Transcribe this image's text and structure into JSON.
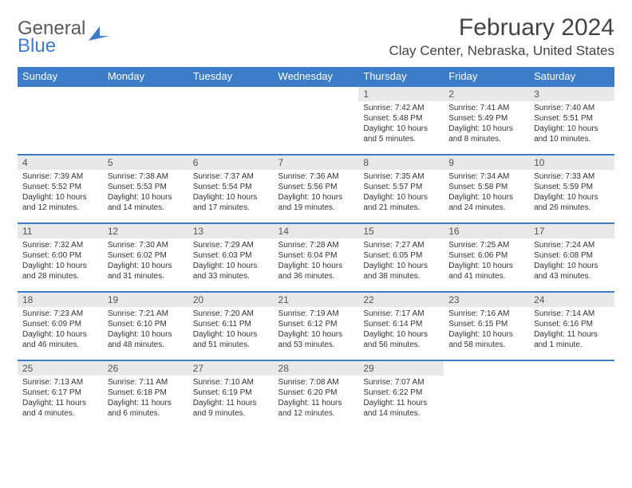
{
  "logo": {
    "line1": "General",
    "line2": "Blue"
  },
  "title": "February 2024",
  "location": "Clay Center, Nebraska, United States",
  "header_bg": "#3d7cc9",
  "header_fg": "#ffffff",
  "daynum_bg": "#e8e8e8",
  "row_border": "#3d7cc9",
  "weekdays": [
    "Sunday",
    "Monday",
    "Tuesday",
    "Wednesday",
    "Thursday",
    "Friday",
    "Saturday"
  ],
  "weeks": [
    [
      null,
      null,
      null,
      null,
      {
        "n": "1",
        "sunrise": "Sunrise: 7:42 AM",
        "sunset": "Sunset: 5:48 PM",
        "daylight": "Daylight: 10 hours and 5 minutes."
      },
      {
        "n": "2",
        "sunrise": "Sunrise: 7:41 AM",
        "sunset": "Sunset: 5:49 PM",
        "daylight": "Daylight: 10 hours and 8 minutes."
      },
      {
        "n": "3",
        "sunrise": "Sunrise: 7:40 AM",
        "sunset": "Sunset: 5:51 PM",
        "daylight": "Daylight: 10 hours and 10 minutes."
      }
    ],
    [
      {
        "n": "4",
        "sunrise": "Sunrise: 7:39 AM",
        "sunset": "Sunset: 5:52 PM",
        "daylight": "Daylight: 10 hours and 12 minutes."
      },
      {
        "n": "5",
        "sunrise": "Sunrise: 7:38 AM",
        "sunset": "Sunset: 5:53 PM",
        "daylight": "Daylight: 10 hours and 14 minutes."
      },
      {
        "n": "6",
        "sunrise": "Sunrise: 7:37 AM",
        "sunset": "Sunset: 5:54 PM",
        "daylight": "Daylight: 10 hours and 17 minutes."
      },
      {
        "n": "7",
        "sunrise": "Sunrise: 7:36 AM",
        "sunset": "Sunset: 5:56 PM",
        "daylight": "Daylight: 10 hours and 19 minutes."
      },
      {
        "n": "8",
        "sunrise": "Sunrise: 7:35 AM",
        "sunset": "Sunset: 5:57 PM",
        "daylight": "Daylight: 10 hours and 21 minutes."
      },
      {
        "n": "9",
        "sunrise": "Sunrise: 7:34 AM",
        "sunset": "Sunset: 5:58 PM",
        "daylight": "Daylight: 10 hours and 24 minutes."
      },
      {
        "n": "10",
        "sunrise": "Sunrise: 7:33 AM",
        "sunset": "Sunset: 5:59 PM",
        "daylight": "Daylight: 10 hours and 26 minutes."
      }
    ],
    [
      {
        "n": "11",
        "sunrise": "Sunrise: 7:32 AM",
        "sunset": "Sunset: 6:00 PM",
        "daylight": "Daylight: 10 hours and 28 minutes."
      },
      {
        "n": "12",
        "sunrise": "Sunrise: 7:30 AM",
        "sunset": "Sunset: 6:02 PM",
        "daylight": "Daylight: 10 hours and 31 minutes."
      },
      {
        "n": "13",
        "sunrise": "Sunrise: 7:29 AM",
        "sunset": "Sunset: 6:03 PM",
        "daylight": "Daylight: 10 hours and 33 minutes."
      },
      {
        "n": "14",
        "sunrise": "Sunrise: 7:28 AM",
        "sunset": "Sunset: 6:04 PM",
        "daylight": "Daylight: 10 hours and 36 minutes."
      },
      {
        "n": "15",
        "sunrise": "Sunrise: 7:27 AM",
        "sunset": "Sunset: 6:05 PM",
        "daylight": "Daylight: 10 hours and 38 minutes."
      },
      {
        "n": "16",
        "sunrise": "Sunrise: 7:25 AM",
        "sunset": "Sunset: 6:06 PM",
        "daylight": "Daylight: 10 hours and 41 minutes."
      },
      {
        "n": "17",
        "sunrise": "Sunrise: 7:24 AM",
        "sunset": "Sunset: 6:08 PM",
        "daylight": "Daylight: 10 hours and 43 minutes."
      }
    ],
    [
      {
        "n": "18",
        "sunrise": "Sunrise: 7:23 AM",
        "sunset": "Sunset: 6:09 PM",
        "daylight": "Daylight: 10 hours and 46 minutes."
      },
      {
        "n": "19",
        "sunrise": "Sunrise: 7:21 AM",
        "sunset": "Sunset: 6:10 PM",
        "daylight": "Daylight: 10 hours and 48 minutes."
      },
      {
        "n": "20",
        "sunrise": "Sunrise: 7:20 AM",
        "sunset": "Sunset: 6:11 PM",
        "daylight": "Daylight: 10 hours and 51 minutes."
      },
      {
        "n": "21",
        "sunrise": "Sunrise: 7:19 AM",
        "sunset": "Sunset: 6:12 PM",
        "daylight": "Daylight: 10 hours and 53 minutes."
      },
      {
        "n": "22",
        "sunrise": "Sunrise: 7:17 AM",
        "sunset": "Sunset: 6:14 PM",
        "daylight": "Daylight: 10 hours and 56 minutes."
      },
      {
        "n": "23",
        "sunrise": "Sunrise: 7:16 AM",
        "sunset": "Sunset: 6:15 PM",
        "daylight": "Daylight: 10 hours and 58 minutes."
      },
      {
        "n": "24",
        "sunrise": "Sunrise: 7:14 AM",
        "sunset": "Sunset: 6:16 PM",
        "daylight": "Daylight: 11 hours and 1 minute."
      }
    ],
    [
      {
        "n": "25",
        "sunrise": "Sunrise: 7:13 AM",
        "sunset": "Sunset: 6:17 PM",
        "daylight": "Daylight: 11 hours and 4 minutes."
      },
      {
        "n": "26",
        "sunrise": "Sunrise: 7:11 AM",
        "sunset": "Sunset: 6:18 PM",
        "daylight": "Daylight: 11 hours and 6 minutes."
      },
      {
        "n": "27",
        "sunrise": "Sunrise: 7:10 AM",
        "sunset": "Sunset: 6:19 PM",
        "daylight": "Daylight: 11 hours and 9 minutes."
      },
      {
        "n": "28",
        "sunrise": "Sunrise: 7:08 AM",
        "sunset": "Sunset: 6:20 PM",
        "daylight": "Daylight: 11 hours and 12 minutes."
      },
      {
        "n": "29",
        "sunrise": "Sunrise: 7:07 AM",
        "sunset": "Sunset: 6:22 PM",
        "daylight": "Daylight: 11 hours and 14 minutes."
      },
      null,
      null
    ]
  ]
}
